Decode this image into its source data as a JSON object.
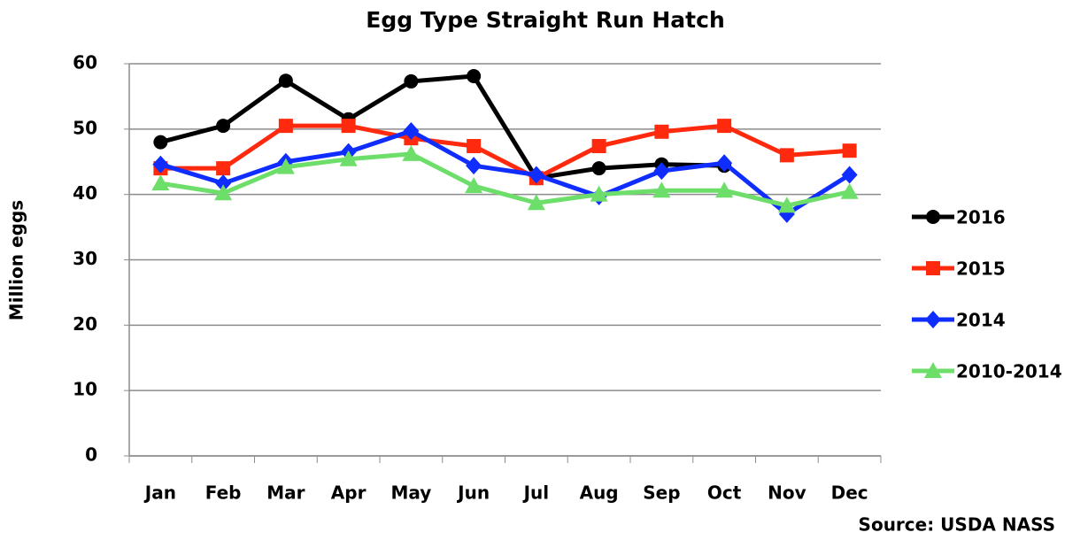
{
  "chart_data": {
    "type": "line",
    "title": "Egg Type Straight Run Hatch",
    "y_label": "Million eggs",
    "source": "Source: USDA NASS",
    "categories": [
      "Jan",
      "Feb",
      "Mar",
      "Apr",
      "May",
      "Jun",
      "Jul",
      "Aug",
      "Sep",
      "Oct",
      "Nov",
      "Dec"
    ],
    "series": [
      {
        "name": "2016",
        "color": "#000000",
        "marker": "circle",
        "values": [
          48,
          50.5,
          57.4,
          51.5,
          57.3,
          58.1,
          42.5,
          44,
          44.6,
          44.4,
          null,
          null
        ]
      },
      {
        "name": "2015",
        "color": "#ff2a0e",
        "marker": "square",
        "values": [
          44,
          44,
          50.5,
          50.5,
          48.6,
          47.4,
          42.5,
          47.4,
          49.6,
          50.5,
          46,
          46.7
        ]
      },
      {
        "name": "2014",
        "color": "#0f2dff",
        "marker": "diamond",
        "values": [
          44.6,
          41.7,
          45,
          46.5,
          49.7,
          44.4,
          43,
          39.7,
          43.6,
          44.8,
          37,
          43
        ]
      },
      {
        "name": "2010-2014",
        "color": "#6ede6a",
        "marker": "triangle",
        "values": [
          41.7,
          40.2,
          44.2,
          45.4,
          46.2,
          41.3,
          38.7,
          40,
          40.6,
          40.6,
          38.3,
          40.4
        ]
      }
    ],
    "ylim": [
      0,
      60
    ],
    "yticks": [
      0,
      10,
      20,
      30,
      40,
      50,
      60
    ],
    "grid": true,
    "legend": "right"
  }
}
